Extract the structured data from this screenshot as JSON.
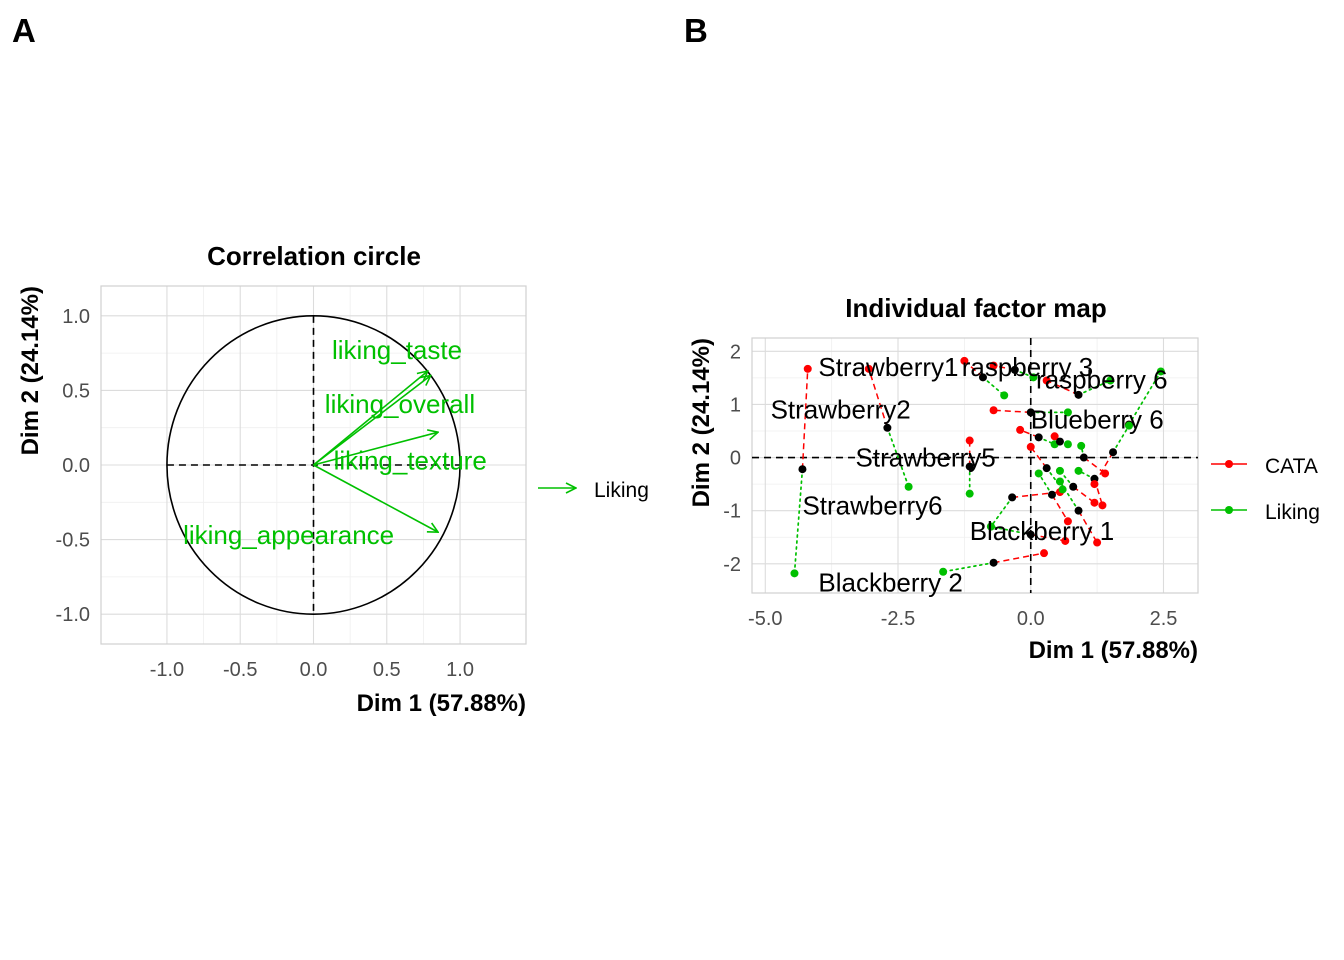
{
  "panel_labels": [
    "A",
    "B"
  ],
  "colors": {
    "cata": "#ff0000",
    "liking": "#00c000",
    "center": "#000000",
    "variable": "#00c000"
  },
  "chart_data": [
    {
      "type": "scatter",
      "subtype": "correlation-circle",
      "title": "Correlation circle",
      "xlabel": "Dim 1 (57.88%)",
      "ylabel": "Dim 2 (24.14%)",
      "xlim": [
        -1.45,
        1.45
      ],
      "ylim": [
        -1.2,
        1.2
      ],
      "xticks": [
        -1.0,
        -0.5,
        0.0,
        0.5,
        1.0
      ],
      "xtick_labels": [
        "-1.0",
        "-0.5",
        "0.0",
        "0.5",
        "1.0"
      ],
      "yticks": [
        -1.0,
        -0.5,
        0.0,
        0.5,
        1.0
      ],
      "ytick_labels": [
        "-1.0",
        "-0.5",
        "0.0",
        "0.5",
        "1.0"
      ],
      "grid": true,
      "legend": {
        "position": "right",
        "entries": [
          {
            "name": "Liking",
            "color": "#00c000"
          }
        ]
      },
      "vectors": [
        {
          "name": "liking_taste",
          "x": 0.78,
          "y": 0.63
        },
        {
          "name": "liking_overall",
          "x": 0.8,
          "y": 0.6
        },
        {
          "name": "liking_texture",
          "x": 0.85,
          "y": 0.22
        },
        {
          "name": "liking_appearance",
          "x": 0.85,
          "y": -0.45
        }
      ],
      "labels": [
        {
          "text": "liking_taste",
          "x": 0.57,
          "y": 0.77
        },
        {
          "text": "liking_overall",
          "x": 0.59,
          "y": 0.41
        },
        {
          "text": "liking_texture",
          "x": 0.66,
          "y": 0.03
        },
        {
          "text": "liking_appearance",
          "x": -0.17,
          "y": -0.47
        }
      ]
    },
    {
      "type": "scatter",
      "subtype": "individual-factor-map",
      "title": "Individual factor map",
      "xlabel": "Dim 1 (57.88%)",
      "ylabel": "Dim 2 (24.14%)",
      "xlim": [
        -5.25,
        3.15
      ],
      "ylim": [
        -2.55,
        2.25
      ],
      "xticks": [
        -5.0,
        -2.5,
        0.0,
        2.5
      ],
      "xtick_labels": [
        "-5.0",
        "-2.5",
        "0.0",
        "2.5"
      ],
      "yticks": [
        -2,
        -1,
        0,
        1,
        2
      ],
      "ytick_labels": [
        "-2",
        "-1",
        "0",
        "1",
        "2"
      ],
      "grid": true,
      "legend": {
        "position": "right",
        "entries": [
          {
            "name": "CATA",
            "color": "#ff0000"
          },
          {
            "name": "Liking",
            "color": "#00c000"
          }
        ]
      },
      "products": [
        {
          "center": [
            -4.3,
            -0.22
          ],
          "cata": [
            -4.2,
            1.67
          ],
          "liking": [
            -4.45,
            -2.18
          ]
        },
        {
          "center": [
            -2.7,
            0.56
          ],
          "cata": [
            -3.05,
            1.67
          ],
          "liking": [
            -2.3,
            -0.55
          ]
        },
        {
          "center": [
            -0.9,
            1.51
          ],
          "cata": [
            -1.25,
            1.82
          ],
          "liking": [
            -0.5,
            1.17
          ]
        },
        {
          "center": [
            -0.3,
            1.65
          ],
          "cata": [
            -0.7,
            1.73
          ],
          "liking": [
            0.05,
            1.51
          ]
        },
        {
          "center": [
            -1.15,
            -0.17
          ],
          "cata": [
            -1.15,
            0.32
          ],
          "liking": [
            -1.15,
            -0.68
          ]
        },
        {
          "center": [
            0.0,
            0.85
          ],
          "cata": [
            -0.7,
            0.89
          ],
          "liking": [
            0.7,
            0.85
          ]
        },
        {
          "center": [
            0.9,
            1.18
          ],
          "cata": [
            0.3,
            1.45
          ],
          "liking": [
            1.5,
            1.45
          ]
        },
        {
          "center": [
            1.85,
            0.62
          ],
          "cata": [
            1.85,
            0.62
          ],
          "liking": [
            2.45,
            1.62
          ]
        },
        {
          "center": [
            0.9,
            -1.0
          ],
          "cata": [
            1.25,
            -1.6
          ],
          "liking": [
            0.55,
            -0.45
          ]
        },
        {
          "center": [
            -0.7,
            -1.98
          ],
          "cata": [
            0.25,
            -1.8
          ],
          "liking": [
            -1.65,
            -2.15
          ]
        },
        {
          "center": [
            -0.35,
            -0.75
          ],
          "cata": [
            0.55,
            -0.65
          ],
          "liking": [
            -0.75,
            -1.3
          ]
        },
        {
          "center": [
            0.0,
            -1.45
          ],
          "cata": [
            0.65,
            -1.57
          ],
          "liking": [
            -0.75,
            -1.3
          ]
        },
        {
          "center": [
            1.2,
            -0.4
          ],
          "cata": [
            1.35,
            -0.9
          ],
          "liking": [
            0.9,
            -0.25
          ]
        },
        {
          "center": [
            0.15,
            0.38
          ],
          "cata": [
            -0.2,
            0.52
          ],
          "liking": [
            0.45,
            0.25
          ]
        },
        {
          "center": [
            0.55,
            0.3
          ],
          "cata": [
            0.45,
            0.4
          ],
          "liking": [
            0.7,
            0.25
          ]
        },
        {
          "center": [
            0.4,
            -0.7
          ],
          "cata": [
            0.7,
            -1.2
          ],
          "liking": [
            0.15,
            -0.3
          ]
        },
        {
          "center": [
            1.55,
            0.1
          ],
          "cata": [
            1.2,
            -0.5
          ],
          "liking": [
            1.85,
            0.6
          ]
        },
        {
          "center": [
            0.8,
            -0.55
          ],
          "cata": [
            1.2,
            -0.85
          ],
          "liking": [
            0.55,
            -0.25
          ]
        },
        {
          "center": [
            0.3,
            -0.2
          ],
          "cata": [
            0.0,
            0.2
          ],
          "liking": [
            0.6,
            -0.6
          ]
        },
        {
          "center": [
            1.0,
            0.0
          ],
          "cata": [
            1.4,
            -0.3
          ],
          "liking": [
            0.95,
            0.22
          ]
        }
      ],
      "labels": [
        {
          "text": "Strawberry1",
          "x": -4.0,
          "y": 1.7
        },
        {
          "text": "raspberry 3",
          "x": -1.3,
          "y": 1.7
        },
        {
          "text": "raspberry 6",
          "x": 0.1,
          "y": 1.47
        },
        {
          "text": "Strawberry2",
          "x": -4.9,
          "y": 0.9
        },
        {
          "text": "Blueberry 6",
          "x": 0.0,
          "y": 0.72
        },
        {
          "text": "Strawberry5",
          "x": -3.3,
          "y": 0.0
        },
        {
          "text": "Strawberry6",
          "x": -4.3,
          "y": -0.9
        },
        {
          "text": "Blackberry 1",
          "x": -1.15,
          "y": -1.38
        },
        {
          "text": "Blackberry 2",
          "x": -4.0,
          "y": -2.35
        }
      ]
    }
  ]
}
